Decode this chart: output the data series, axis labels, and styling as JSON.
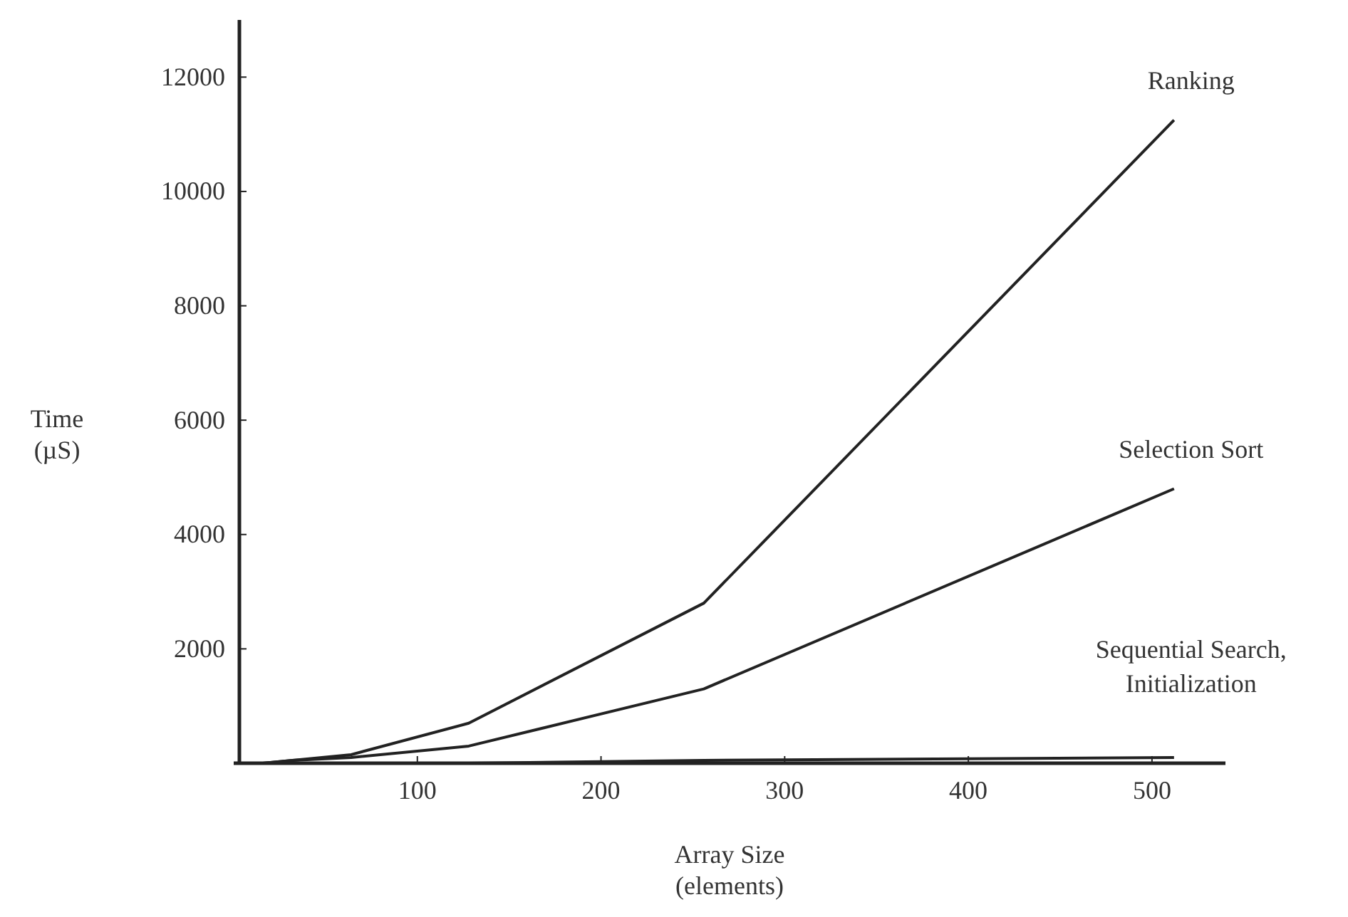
{
  "chart_data": {
    "type": "line",
    "xlabel": "Array Size\n(elements)",
    "ylabel": "Time\n(µS)",
    "x": [
      16,
      32,
      64,
      128,
      256,
      512
    ],
    "series": [
      {
        "name": "Ranking",
        "color": "#222222",
        "values": [
          0,
          50,
          150,
          700,
          2800,
          11250
        ]
      },
      {
        "name": "Selection Sort",
        "color": "#222222",
        "values": [
          0,
          50,
          100,
          300,
          1300,
          4800
        ]
      },
      {
        "name": "Sequential Search, Initialization",
        "color": "#222222",
        "values": [
          0,
          0,
          0,
          0,
          50,
          100
        ]
      }
    ],
    "xlim": [
      0,
      540
    ],
    "ylim": [
      0,
      13000
    ],
    "xticks": [
      100,
      200,
      300,
      400,
      500
    ],
    "yticks": [
      2000,
      4000,
      6000,
      8000,
      10000,
      12000
    ],
    "grid": false,
    "marker": "none",
    "line_style": "solid"
  }
}
